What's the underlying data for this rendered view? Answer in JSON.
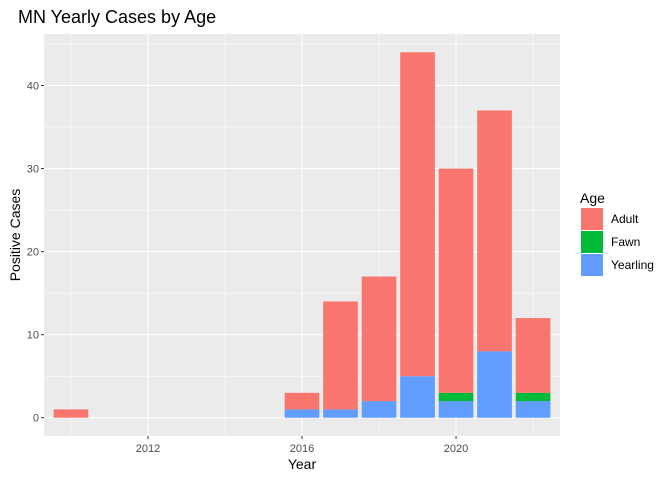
{
  "chart_data": {
    "type": "bar",
    "stacked": true,
    "title": "MN Yearly Cases by Age",
    "xlabel": "Year",
    "ylabel": "Positive Cases",
    "x": [
      2010,
      2016,
      2017,
      2018,
      2019,
      2020,
      2021,
      2022
    ],
    "xlim": [
      2009.3,
      2022.7
    ],
    "ylim": [
      -2.2,
      46.2
    ],
    "x_ticks": [
      2012,
      2016,
      2020
    ],
    "y_ticks": [
      0,
      10,
      20,
      30,
      40
    ],
    "grid": true,
    "legend_title": "Age",
    "legend_position": "right",
    "series": [
      {
        "name": "Yearling",
        "color": "#619CFF",
        "values": [
          0,
          1,
          1,
          2,
          5,
          2,
          8,
          2
        ]
      },
      {
        "name": "Fawn",
        "color": "#00BA38",
        "values": [
          0,
          0,
          0,
          0,
          0,
          1,
          0,
          1
        ]
      },
      {
        "name": "Adult",
        "color": "#F8766D",
        "values": [
          1,
          2,
          13,
          15,
          39,
          27,
          29,
          9
        ]
      }
    ],
    "legend_order": [
      "Adult",
      "Fawn",
      "Yearling"
    ]
  }
}
